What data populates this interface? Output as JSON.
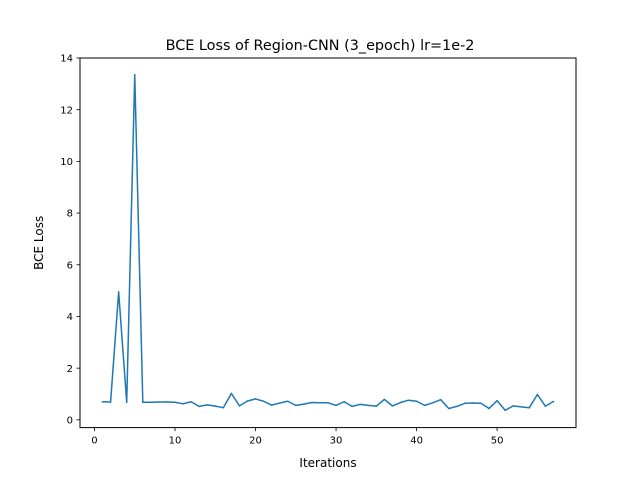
{
  "chart_data": {
    "type": "line",
    "title": "BCE Loss of Region-CNN (3_epoch) lr=1e-2",
    "xlabel": "Iterations",
    "ylabel": "BCE Loss",
    "xlim": [
      -1.8,
      59.8
    ],
    "ylim": [
      -0.3,
      14
    ],
    "xticks": [
      0,
      10,
      20,
      30,
      40,
      50
    ],
    "yticks": [
      0,
      2,
      4,
      6,
      8,
      10,
      12,
      14
    ],
    "grid": false,
    "series": [
      {
        "color": "#1f77b4",
        "x": [
          1,
          2,
          3,
          4,
          5,
          6,
          7,
          8,
          9,
          10,
          11,
          12,
          13,
          14,
          15,
          16,
          17,
          18,
          19,
          20,
          21,
          22,
          23,
          24,
          25,
          26,
          27,
          28,
          29,
          30,
          31,
          32,
          33,
          34,
          35,
          36,
          37,
          38,
          39,
          40,
          41,
          42,
          43,
          44,
          45,
          46,
          47,
          48,
          49,
          50,
          51,
          52,
          53,
          54,
          55,
          56,
          57
        ],
        "y": [
          0.7,
          0.69,
          4.95,
          0.68,
          13.35,
          0.68,
          0.68,
          0.69,
          0.69,
          0.68,
          0.62,
          0.7,
          0.52,
          0.58,
          0.53,
          0.47,
          1.02,
          0.54,
          0.73,
          0.81,
          0.72,
          0.57,
          0.65,
          0.72,
          0.56,
          0.61,
          0.67,
          0.66,
          0.66,
          0.56,
          0.7,
          0.52,
          0.6,
          0.56,
          0.53,
          0.79,
          0.54,
          0.67,
          0.76,
          0.72,
          0.56,
          0.66,
          0.78,
          0.44,
          0.52,
          0.64,
          0.65,
          0.64,
          0.44,
          0.74,
          0.37,
          0.54,
          0.5,
          0.47,
          0.98,
          0.53,
          0.71
        ]
      }
    ]
  }
}
